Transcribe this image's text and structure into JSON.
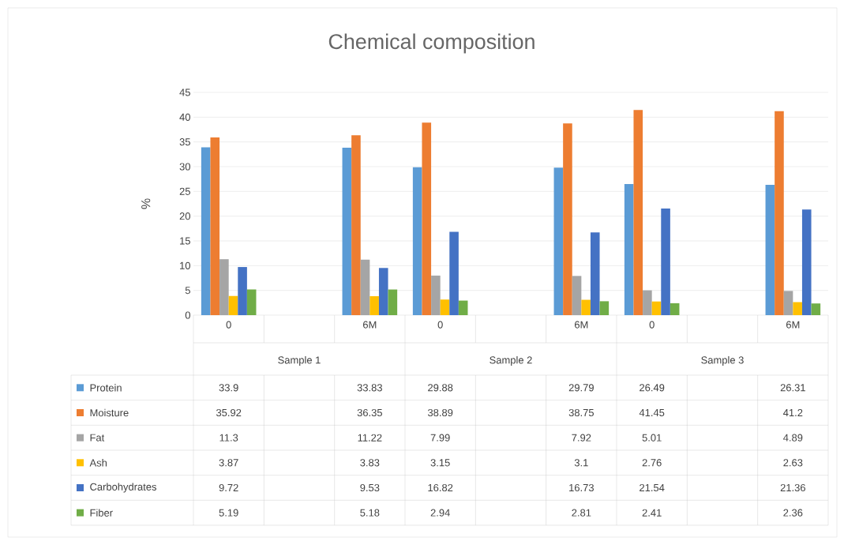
{
  "chart_data": {
    "type": "bar",
    "title": "Chemical composition",
    "ylabel": "%",
    "categories": [
      "0",
      null,
      "6M",
      "0",
      null,
      "6M",
      "0",
      null,
      "6M"
    ],
    "annotations": [
      "Sample 1",
      "Sample 2",
      "Sample 3"
    ],
    "series": [
      {
        "name": "Protein",
        "color": "#5b9bd5",
        "values": [
          33.9,
          null,
          33.83,
          29.88,
          null,
          29.79,
          26.49,
          null,
          26.31
        ]
      },
      {
        "name": "Moisture",
        "color": "#ed7d31",
        "values": [
          35.92,
          null,
          36.35,
          38.89,
          null,
          38.75,
          41.45,
          null,
          41.2
        ]
      },
      {
        "name": "Fat",
        "color": "#a5a5a5",
        "values": [
          11.3,
          null,
          11.22,
          7.99,
          null,
          7.92,
          5.01,
          null,
          4.89
        ]
      },
      {
        "name": "Ash",
        "color": "#ffc000",
        "values": [
          3.87,
          null,
          3.83,
          3.15,
          null,
          3.1,
          2.76,
          null,
          2.63
        ]
      },
      {
        "name": "Carbohydrates",
        "color": "#4472c4",
        "values": [
          9.72,
          null,
          9.53,
          16.82,
          null,
          16.73,
          21.54,
          null,
          21.36
        ]
      },
      {
        "name": "Fiber",
        "color": "#70ad47",
        "values": [
          5.19,
          null,
          5.18,
          2.94,
          null,
          2.81,
          2.41,
          null,
          2.36
        ]
      }
    ],
    "ylim": [
      0,
      45
    ],
    "yticks": [
      0,
      5,
      10,
      15,
      20,
      25,
      30,
      35,
      40,
      45
    ],
    "grid": "y",
    "legend": "bottom",
    "data_labels": true
  }
}
